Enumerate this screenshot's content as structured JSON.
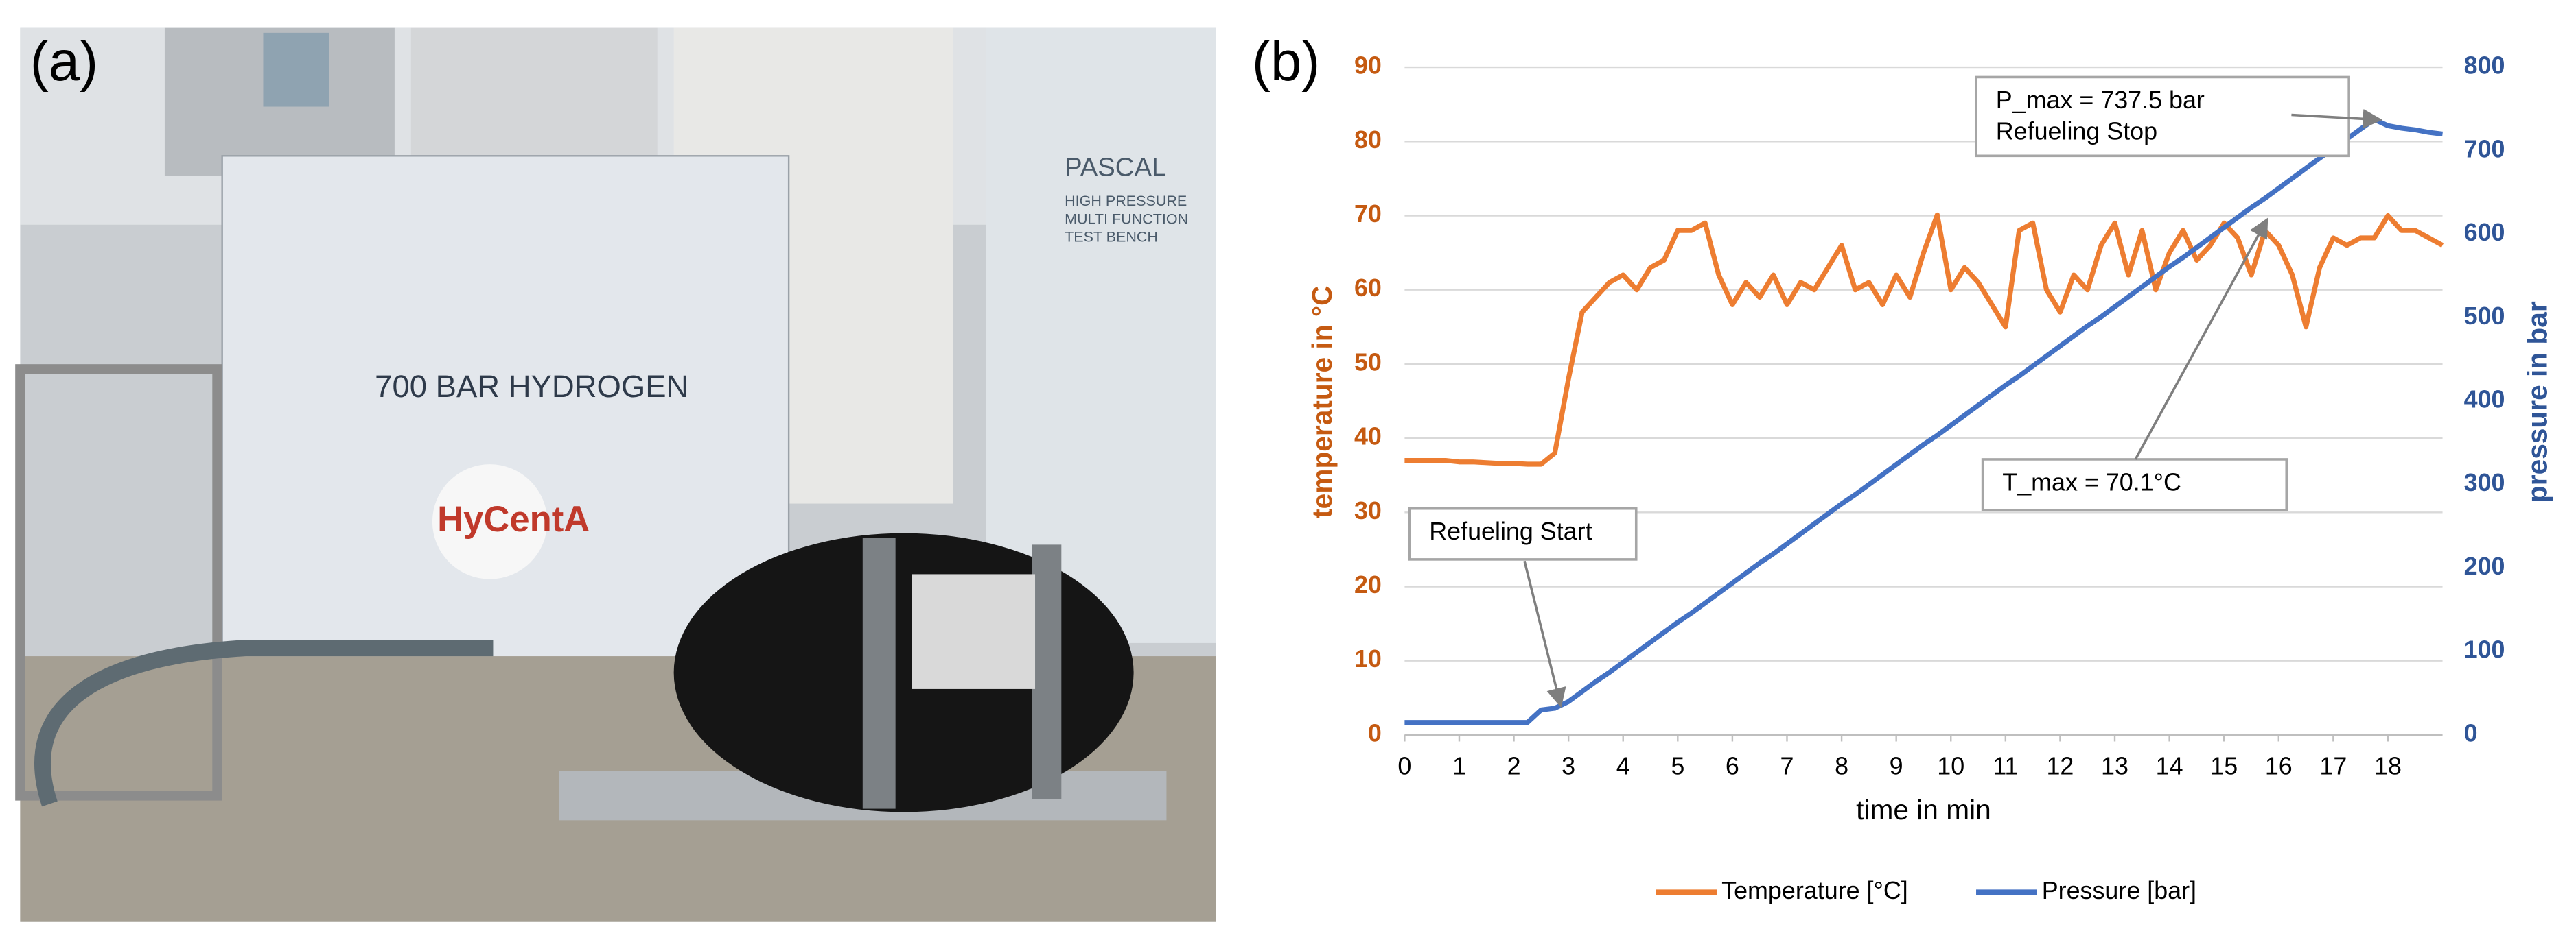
{
  "panels": [
    "(a)",
    "(b)"
  ],
  "photo": {
    "texts": [
      "700 BAR HYDROGEN",
      "PASCAL",
      "HIGH PRESSURE",
      "MULTI FUNCTION",
      "TEST BENCH",
      "HyCentA"
    ]
  },
  "chart_data": {
    "type": "line",
    "x": [
      0,
      0.25,
      0.5,
      0.75,
      1,
      1.25,
      1.5,
      1.75,
      2,
      2.25,
      2.5,
      2.75,
      3,
      3.25,
      3.5,
      3.75,
      4,
      4.25,
      4.5,
      4.75,
      5,
      5.25,
      5.5,
      5.75,
      6,
      6.25,
      6.5,
      6.75,
      7,
      7.25,
      7.5,
      7.75,
      8,
      8.25,
      8.5,
      8.75,
      9,
      9.25,
      9.5,
      9.75,
      10,
      10.25,
      10.5,
      10.75,
      11,
      11.25,
      11.5,
      11.75,
      12,
      12.25,
      12.5,
      12.75,
      13,
      13.25,
      13.5,
      13.75,
      14,
      14.25,
      14.5,
      14.75,
      15,
      15.25,
      15.5,
      15.75,
      16,
      16.25,
      16.5,
      16.75,
      17,
      17.25,
      17.5,
      17.75,
      18,
      18.25,
      18.5,
      18.75,
      19
    ],
    "series": [
      {
        "name": "Temperature [°C]",
        "color": "#ed7d31",
        "axis": "y",
        "values": [
          37,
          37,
          37,
          37,
          36.8,
          36.8,
          36.7,
          36.6,
          36.6,
          36.5,
          36.5,
          38,
          48,
          57,
          59,
          61,
          62,
          60,
          63,
          64,
          68,
          68,
          69,
          62,
          58,
          61,
          59,
          62,
          58,
          61,
          60,
          63,
          66,
          60,
          61,
          58,
          62,
          59,
          65,
          70.1,
          60,
          63,
          61,
          58,
          55,
          68,
          69,
          60,
          57,
          62,
          60,
          66,
          69,
          62,
          68,
          60,
          65,
          68,
          64,
          66,
          69,
          67,
          62,
          68,
          66,
          62,
          55,
          63,
          67,
          66,
          67,
          67,
          70,
          68,
          68,
          67,
          66
        ]
      },
      {
        "name": "Pressure [bar]",
        "color": "#4472c4",
        "axis": "y2",
        "values": [
          15,
          15,
          15,
          15,
          15,
          15,
          15,
          15,
          15,
          15,
          30,
          32,
          40,
          52,
          64,
          75,
          87,
          99,
          111,
          123,
          135,
          146,
          158,
          170,
          182,
          194,
          206,
          217,
          229,
          241,
          253,
          265,
          277,
          288,
          300,
          312,
          324,
          336,
          348,
          359,
          371,
          383,
          395,
          407,
          419,
          430,
          442,
          454,
          466,
          478,
          490,
          501,
          513,
          525,
          537,
          549,
          561,
          572,
          584,
          596,
          608,
          620,
          632,
          643,
          655,
          667,
          679,
          691,
          703,
          714,
          726,
          737.5,
          730,
          727,
          725,
          722,
          720
        ]
      }
    ],
    "xlabel": "time in min",
    "ylabel": "temperature in °C",
    "y2label": "pressure in bar",
    "xlim": [
      0,
      19
    ],
    "xticks": [
      0,
      1,
      2,
      3,
      4,
      5,
      6,
      7,
      8,
      9,
      10,
      11,
      12,
      13,
      14,
      15,
      16,
      17,
      18
    ],
    "ylim": [
      0,
      90
    ],
    "yticks": [
      0,
      10,
      20,
      30,
      40,
      50,
      60,
      70,
      80,
      90
    ],
    "y2lim": [
      0,
      800
    ],
    "y2ticks": [
      0,
      100,
      200,
      300,
      400,
      500,
      600,
      700,
      800
    ],
    "grid": true,
    "legend": "bottom",
    "annotations": [
      {
        "lines": [
          "Refueling Start"
        ]
      },
      {
        "lines": [
          "T_max = 70.1°C"
        ]
      },
      {
        "lines": [
          "P_max = 737.5 bar",
          "Refueling Stop"
        ]
      }
    ]
  }
}
